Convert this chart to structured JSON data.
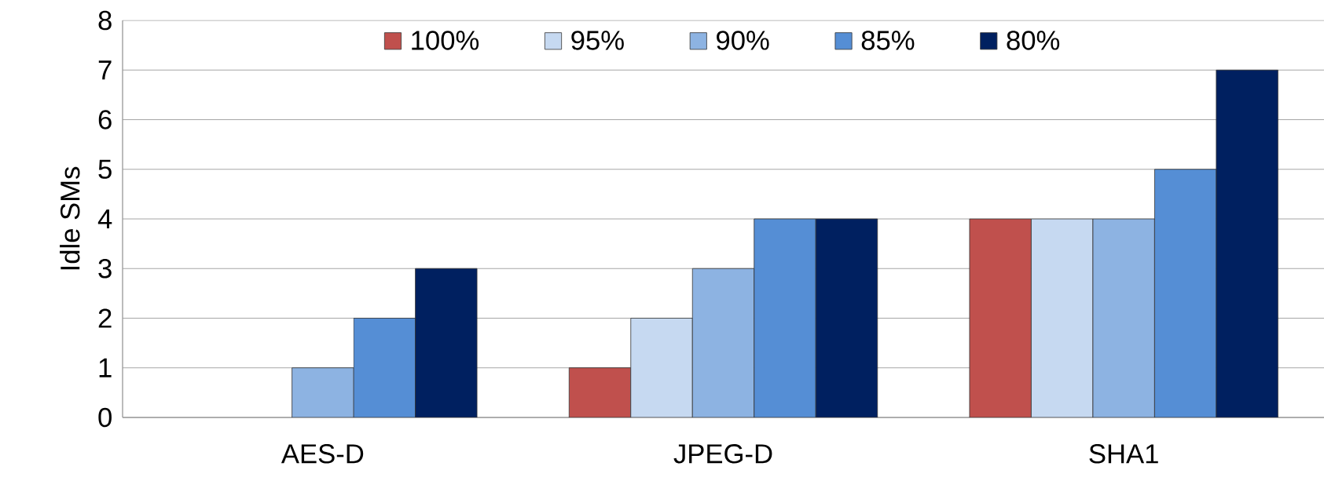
{
  "chart_data": {
    "type": "bar",
    "ylabel": "Idle SMs",
    "categories": [
      "AES-D",
      "JPEG-D",
      "SHA1"
    ],
    "series": [
      {
        "name": "100%",
        "color": "#c0504d",
        "values": [
          0,
          1,
          4
        ]
      },
      {
        "name": "95%",
        "color": "#c6d9f1",
        "values": [
          0,
          2,
          4
        ]
      },
      {
        "name": "90%",
        "color": "#8db3e2",
        "values": [
          1,
          3,
          4
        ]
      },
      {
        "name": "85%",
        "color": "#558ed5",
        "values": [
          2,
          4,
          5
        ]
      },
      {
        "name": "80%",
        "color": "#002060",
        "values": [
          3,
          4,
          7
        ]
      }
    ],
    "ylim": [
      0,
      8
    ],
    "yticks": [
      0,
      1,
      2,
      3,
      4,
      5,
      6,
      7,
      8
    ],
    "grid": "y",
    "legend": "top"
  }
}
